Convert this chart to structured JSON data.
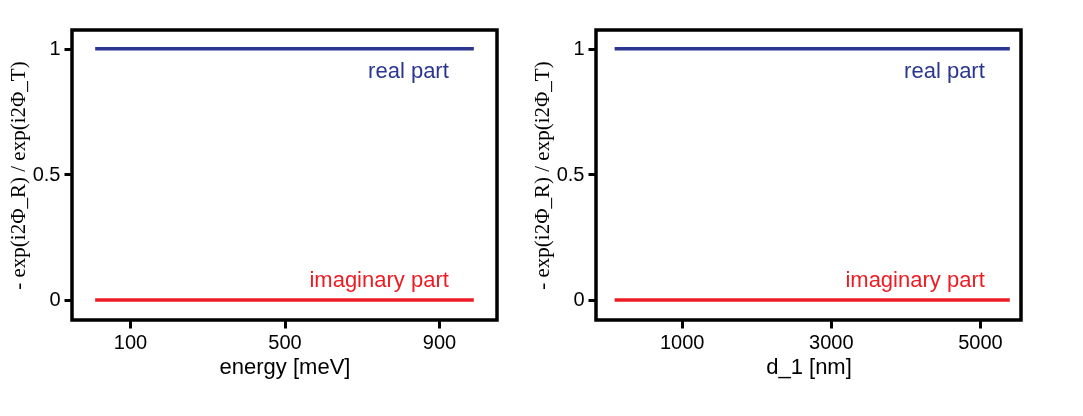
{
  "chart_data": [
    {
      "type": "line",
      "xlabel": "energy  [meV]",
      "ylabel": "- exp(i2Φ_R) / exp(i2Φ_T)",
      "xlim": [
        -50,
        1050
      ],
      "ylim": [
        -0.08,
        1.075
      ],
      "xticks": [
        100,
        500,
        900
      ],
      "yticks": [
        0,
        0.5,
        1
      ],
      "grid": false,
      "marker": "none",
      "line_style": "solid",
      "series": [
        {
          "name": "real part",
          "color": "#2a3590",
          "x": [
            10,
            990
          ],
          "values": [
            1,
            1
          ]
        },
        {
          "name": "imaginary part",
          "color": "#ed1c24",
          "x": [
            10,
            990
          ],
          "values": [
            0,
            0
          ]
        }
      ]
    },
    {
      "type": "line",
      "xlabel": "d_1  [nm]",
      "ylabel": "- exp(i2Φ_R) / exp(i2Φ_T)",
      "xlim": [
        -150,
        5550
      ],
      "ylim": [
        -0.08,
        1.075
      ],
      "xticks": [
        1000,
        3000,
        5000
      ],
      "yticks": [
        0,
        0.5,
        1
      ],
      "grid": false,
      "marker": "none",
      "line_style": "solid",
      "series": [
        {
          "name": "real part",
          "color": "#2a3590",
          "x": [
            100,
            5400
          ],
          "values": [
            1,
            1
          ]
        },
        {
          "name": "imaginary part",
          "color": "#ed1c24",
          "x": [
            100,
            5400
          ],
          "values": [
            0,
            0
          ]
        }
      ]
    }
  ]
}
